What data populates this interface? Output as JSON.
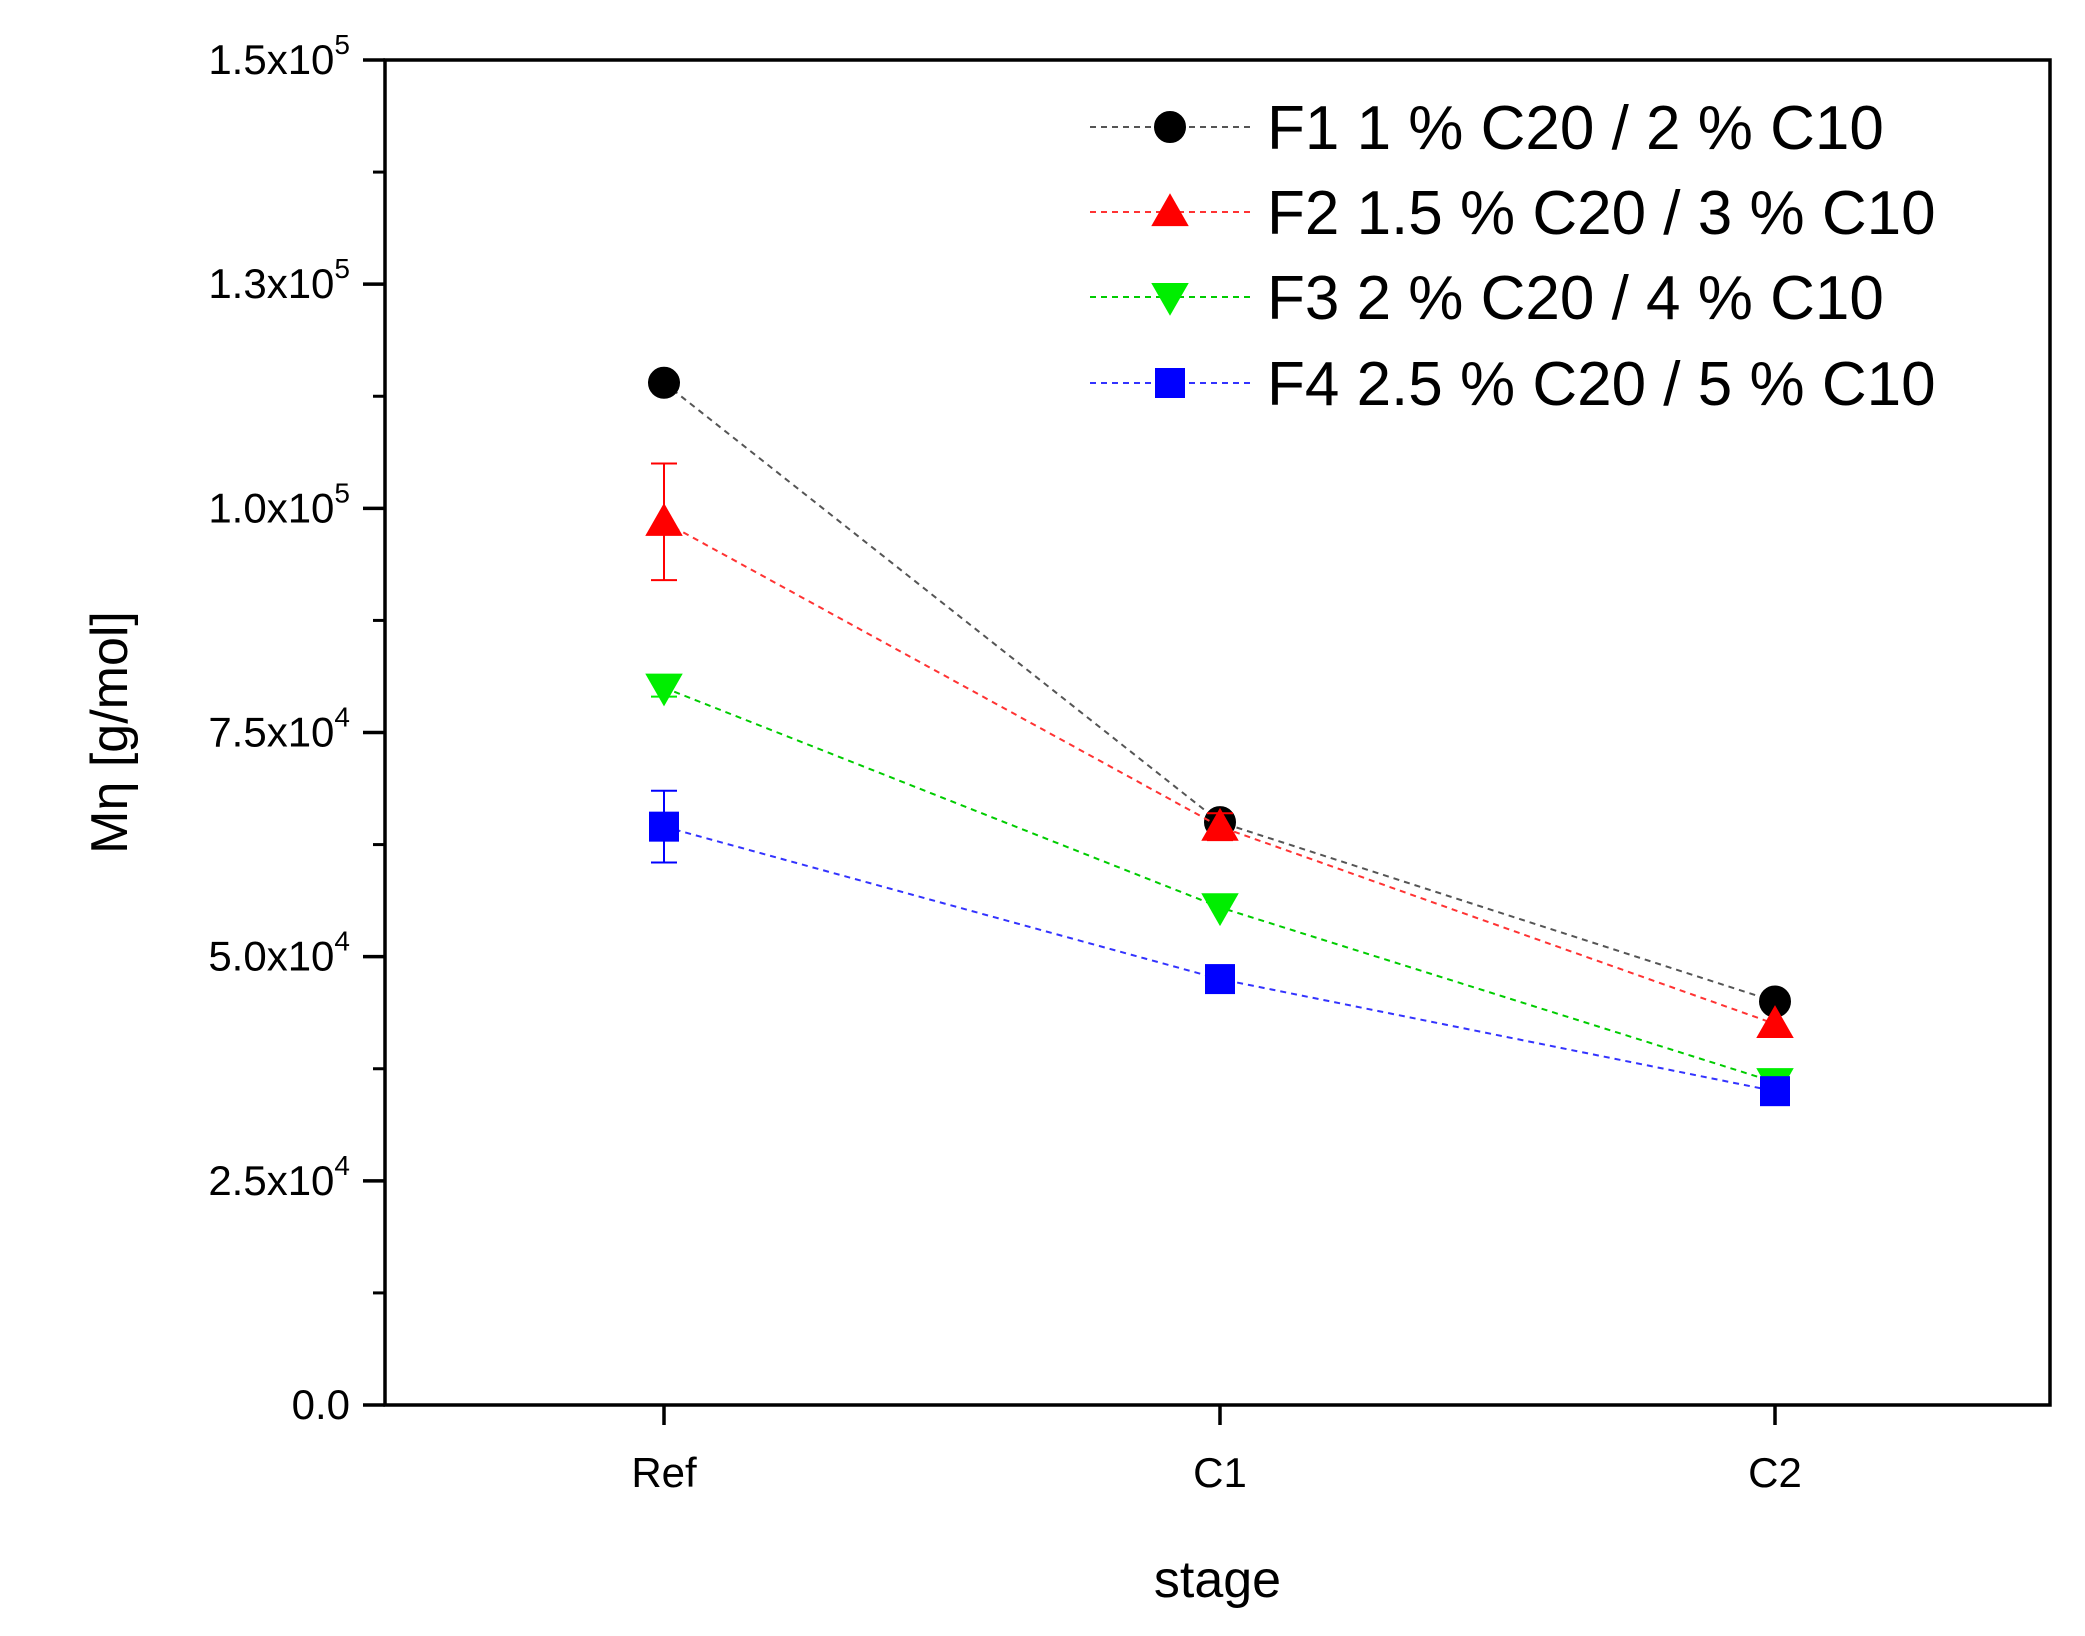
{
  "chart_data": {
    "type": "line",
    "title": "",
    "xlabel": "stage",
    "ylabel": "Mη [g/mol]",
    "categories": [
      "Ref",
      "C1",
      "C2"
    ],
    "ylim": [
      0,
      150000
    ],
    "y_ticks": [
      {
        "value": 0,
        "label": "0.0",
        "exp": ""
      },
      {
        "value": 25000,
        "label": "2.5x10",
        "exp": "4"
      },
      {
        "value": 50000,
        "label": "5.0x10",
        "exp": "4"
      },
      {
        "value": 75000,
        "label": "7.5x10",
        "exp": "4"
      },
      {
        "value": 100000,
        "label": "1.0x10",
        "exp": "5"
      },
      {
        "value": 125000,
        "label": "1.3x10",
        "exp": "5"
      },
      {
        "value": 150000,
        "label": "1.5x10",
        "exp": "5"
      }
    ],
    "legend_position": "top-right",
    "grid": false,
    "series": [
      {
        "name": "F1 1 % C20 / 2 % C10",
        "color": "#000000",
        "line_color": "#555555",
        "marker": "circle",
        "values": [
          114000,
          65000,
          45000
        ],
        "errors": [
          0,
          0,
          0
        ]
      },
      {
        "name": "F2 1.5 % C20 / 3 % C10",
        "color": "#ff0000",
        "line_color": "#ff3333",
        "marker": "triangle-up",
        "values": [
          98500,
          64500,
          42500
        ],
        "errors": [
          6500,
          1500,
          0
        ]
      },
      {
        "name": "F3 2 % C20 / 4 % C10",
        "color": "#00ee00",
        "line_color": "#00cc00",
        "marker": "triangle-down",
        "values": [
          80000,
          55500,
          36000
        ],
        "errors": [
          1000,
          0,
          0
        ]
      },
      {
        "name": "F4 2.5 % C20 / 5 % C10",
        "color": "#0000ff",
        "line_color": "#3333ff",
        "marker": "square",
        "values": [
          64500,
          47500,
          35000
        ],
        "errors": [
          4000,
          0,
          0
        ]
      }
    ]
  }
}
